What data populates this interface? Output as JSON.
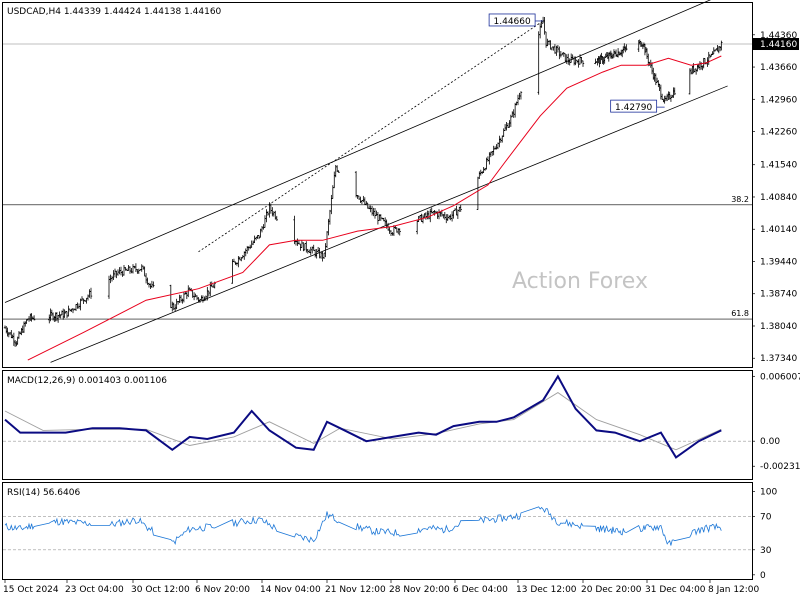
{
  "chart_data": [
    {
      "type": "candlestick",
      "panel": "price",
      "header": "USDCAD,H4  1.44339 1.44424 1.44138 1.44160",
      "symbol": "USDCAD",
      "timeframe": "H4",
      "ohlc_last": [
        1.44339,
        1.44424,
        1.44138,
        1.4416
      ],
      "watermark": "Action Forex",
      "ylim": [
        1.3715,
        1.4505
      ],
      "y_ticks": [
        1.4436,
        1.4366,
        1.4296,
        1.4226,
        1.4154,
        1.4084,
        1.4014,
        1.3944,
        1.3874,
        1.3804,
        1.3734
      ],
      "y_tick_labels": [
        "1.44360",
        "1.43660",
        "1.42960",
        "1.42260",
        "1.41540",
        "1.40840",
        "1.40140",
        "1.39440",
        "1.38740",
        "1.38040",
        "1.37340"
      ],
      "current_price": 1.4416,
      "current_price_label": "1.44160",
      "fib_levels": [
        {
          "label": "38.2",
          "value": 1.4067
        },
        {
          "label": "61.8",
          "value": 1.3819
        }
      ],
      "callouts": [
        {
          "text": "1.44660",
          "value": 1.4466,
          "date": "2024-12-16T08:00"
        },
        {
          "text": "1.42790",
          "value": 1.4279,
          "date": "2025-01-02T12:00"
        }
      ],
      "channel_lines": [
        {
          "x": [
            "2024-10-15T00:00",
            "2025-01-09T00:00"
          ],
          "y": [
            1.3855,
            1.4515
          ]
        },
        {
          "x": [
            "2024-10-21T00:00",
            "2025-01-10T20:00"
          ],
          "y": [
            1.3725,
            1.4325
          ]
        },
        {
          "x": [
            "2024-11-07T00:00",
            "2024-12-16T08:00"
          ],
          "y": [
            1.3965,
            1.4466
          ],
          "style": "dotted"
        }
      ],
      "key_points": {
        "x": [
          "2024-10-15T00:00",
          "2024-10-16T12:00",
          "2024-10-18T00:00",
          "2024-10-23T00:00",
          "2024-10-25T12:00",
          "2024-10-28T20:00",
          "2024-10-31T12:00",
          "2024-11-01T12:00",
          "2024-11-04T04:00",
          "2024-11-05T20:00",
          "2024-11-07T04:00",
          "2024-11-11T00:00",
          "2024-11-13T20:00",
          "2024-11-15T00:00",
          "2024-11-18T12:00",
          "2024-11-20T12:00",
          "2024-11-21T04:00",
          "2024-11-22T12:00",
          "2024-11-26T04:00",
          "2024-11-29T00:00",
          "2024-12-03T20:00",
          "2024-12-05T12:00",
          "2024-12-06T20:00",
          "2024-12-10T12:00",
          "2024-12-12T20:00",
          "2024-12-16T08:00",
          "2024-12-16T16:00",
          "2024-12-19T04:00",
          "2024-12-23T12:00",
          "2024-12-26T20:00",
          "2024-12-30T12:00",
          "2025-01-01T00:00",
          "2025-01-02T12:00",
          "2025-01-06T04:00",
          "2025-01-08T20:00",
          "2025-01-10T00:00"
        ],
        "y": [
          1.38,
          1.377,
          1.382,
          1.383,
          1.387,
          1.392,
          1.393,
          1.389,
          1.3845,
          1.388,
          1.386,
          1.394,
          1.4,
          1.406,
          1.398,
          1.396,
          1.3955,
          1.415,
          1.406,
          1.401,
          1.405,
          1.404,
          1.406,
          1.418,
          1.426,
          1.4466,
          1.442,
          1.438,
          1.438,
          1.44,
          1.442,
          1.435,
          1.429,
          1.436,
          1.439,
          1.4416
        ]
      },
      "ma_points": {
        "x": [
          "2024-10-18T00:00",
          "2024-10-25T00:00",
          "2024-11-01T00:00",
          "2024-11-07T00:00",
          "2024-11-12T00:00",
          "2024-11-15T00:00",
          "2024-11-18T00:00",
          "2024-11-21T00:00",
          "2024-11-25T00:00",
          "2024-11-29T00:00",
          "2024-12-03T00:00",
          "2024-12-06T00:00",
          "2024-12-10T00:00",
          "2024-12-12T00:00",
          "2024-12-16T00:00",
          "2024-12-19T00:00",
          "2024-12-24T00:00",
          "2024-12-27T00:00",
          "2024-12-31T00:00",
          "2025-01-03T00:00",
          "2025-01-06T00:00",
          "2025-01-08T00:00",
          "2025-01-10T00:00"
        ],
        "y": [
          1.373,
          1.379,
          1.386,
          1.3885,
          1.392,
          1.398,
          1.399,
          1.399,
          1.401,
          1.402,
          1.404,
          1.4065,
          1.411,
          1.416,
          1.426,
          1.432,
          1.4355,
          1.437,
          1.437,
          1.4385,
          1.437,
          1.4375,
          1.439
        ]
      },
      "series": [
        {
          "name": "Price",
          "kind": "candles",
          "color": "#000000"
        },
        {
          "name": "",
          "kind": "moving-average",
          "color": "#e8001c"
        }
      ]
    },
    {
      "type": "line",
      "panel": "macd",
      "label": "MACD(12,26,9) 0.001403 0.001106",
      "ylim": [
        -0.0035,
        0.0065
      ],
      "y_ticks": [
        0.006007,
        0.0,
        -0.002318
      ],
      "y_tick_labels": [
        "0.006007",
        "0.00",
        "-0.002318"
      ],
      "macd": {
        "x": [
          "2024-10-15T00:00",
          "2024-10-17T00:00",
          "2024-10-20T00:00",
          "2024-10-23T00:00",
          "2024-10-26T00:00",
          "2024-10-29T00:00",
          "2024-11-01T00:00",
          "2024-11-04T00:00",
          "2024-11-06T00:00",
          "2024-11-08T00:00",
          "2024-11-11T00:00",
          "2024-11-13T00:00",
          "2024-11-15T00:00",
          "2024-11-18T00:00",
          "2024-11-20T00:00",
          "2024-11-21T12:00",
          "2024-11-23T00:00",
          "2024-11-26T00:00",
          "2024-11-29T00:00",
          "2024-12-02T00:00",
          "2024-12-04T00:00",
          "2024-12-06T00:00",
          "2024-12-09T00:00",
          "2024-12-11T00:00",
          "2024-12-13T00:00",
          "2024-12-16T08:00",
          "2024-12-18T00:00",
          "2024-12-20T00:00",
          "2024-12-23T00:00",
          "2024-12-26T00:00",
          "2024-12-30T00:00",
          "2025-01-02T00:00",
          "2025-01-04T00:00",
          "2025-01-07T00:00",
          "2025-01-10T00:00"
        ],
        "y": [
          0.002,
          0.0008,
          0.0008,
          0.0008,
          0.0012,
          0.0012,
          0.001,
          -0.0008,
          0.0004,
          0.0002,
          0.0008,
          0.0028,
          0.001,
          -0.0006,
          -0.0008,
          0.0018,
          0.0012,
          0.0,
          0.0004,
          0.0008,
          0.0006,
          0.0014,
          0.0018,
          0.0018,
          0.0022,
          0.0038,
          0.006,
          0.003,
          0.001,
          0.0008,
          0.0,
          0.0008,
          -0.0015,
          0.0,
          0.001
        ]
      },
      "signal": {
        "x": [
          "2024-10-15T00:00",
          "2024-10-20T00:00",
          "2024-10-26T00:00",
          "2024-11-01T00:00",
          "2024-11-06T00:00",
          "2024-11-11T00:00",
          "2024-11-15T00:00",
          "2024-11-20T00:00",
          "2024-11-23T00:00",
          "2024-11-29T00:00",
          "2024-12-04T00:00",
          "2024-12-09T00:00",
          "2024-12-13T00:00",
          "2024-12-18T00:00",
          "2024-12-23T00:00",
          "2024-12-30T00:00",
          "2025-01-04T00:00",
          "2025-01-10T00:00"
        ],
        "y": [
          0.0028,
          0.001,
          0.0011,
          0.0011,
          -0.0004,
          0.0004,
          0.0018,
          -0.0002,
          0.0012,
          0.0002,
          0.0007,
          0.0016,
          0.002,
          0.0045,
          0.002,
          0.0006,
          -0.0008,
          0.0011
        ]
      },
      "series": [
        {
          "name": "MACD",
          "color": "#0b0b82"
        },
        {
          "name": "Signal",
          "color": "#a0a0a0"
        }
      ]
    },
    {
      "type": "line",
      "panel": "rsi",
      "label": "RSI(14) 56.6406",
      "ylim": [
        -5,
        110
      ],
      "y_ticks": [
        100,
        70,
        30,
        0
      ],
      "y_tick_labels": [
        "100",
        "70",
        "30",
        "0"
      ],
      "levels": [
        70,
        30
      ],
      "rsi": {
        "x": [
          "2024-10-15T00:00",
          "2024-10-17T00:00",
          "2024-10-19T00:00",
          "2024-10-22T00:00",
          "2024-10-25T00:00",
          "2024-10-28T00:00",
          "2024-10-31T00:00",
          "2024-11-02T00:00",
          "2024-11-04T00:00",
          "2024-11-06T00:00",
          "2024-11-09T00:00",
          "2024-11-12T00:00",
          "2024-11-14T00:00",
          "2024-11-17T00:00",
          "2024-11-20T00:00",
          "2024-11-21T12:00",
          "2024-11-24T00:00",
          "2024-11-27T00:00",
          "2024-11-30T00:00",
          "2024-12-03T00:00",
          "2024-12-05T00:00",
          "2024-12-07T00:00",
          "2024-12-10T00:00",
          "2024-12-12T00:00",
          "2024-12-14T00:00",
          "2024-12-16T08:00",
          "2024-12-18T00:00",
          "2024-12-21T00:00",
          "2024-12-24T00:00",
          "2024-12-27T00:00",
          "2024-12-30T00:00",
          "2025-01-02T00:00",
          "2025-01-03T00:00",
          "2025-01-06T00:00",
          "2025-01-08T00:00",
          "2025-01-10T00:00"
        ],
        "y": [
          58,
          55,
          60,
          64,
          62,
          60,
          66,
          50,
          38,
          55,
          58,
          64,
          66,
          48,
          42,
          72,
          60,
          52,
          50,
          56,
          54,
          62,
          66,
          68,
          72,
          80,
          64,
          58,
          55,
          52,
          55,
          58,
          36,
          50,
          56,
          57
        ]
      },
      "series": [
        {
          "name": "RSI",
          "color": "#1e78d7"
        }
      ]
    }
  ],
  "x_axis": {
    "ticks": [
      "2024-10-15T00:00",
      "2024-10-23T04:00",
      "2024-10-30T12:00",
      "2024-11-06T20:00",
      "2024-11-14T04:00",
      "2024-11-21T12:00",
      "2024-11-28T20:00",
      "2024-12-06T04:00",
      "2024-12-13T12:00",
      "2024-12-20T20:00",
      "2024-12-31T04:00",
      "2025-01-08T12:00"
    ],
    "labels": [
      "15 Oct 2024",
      "23 Oct 04:00",
      "30 Oct 12:00",
      "6 Nov 20:00",
      "14 Nov 04:00",
      "21 Nov 12:00",
      "28 Nov 20:00",
      "6 Dec 04:00",
      "13 Dec 12:00",
      "20 Dec 20:00",
      "31 Dec 04:00",
      "8 Jan 12:00"
    ]
  }
}
